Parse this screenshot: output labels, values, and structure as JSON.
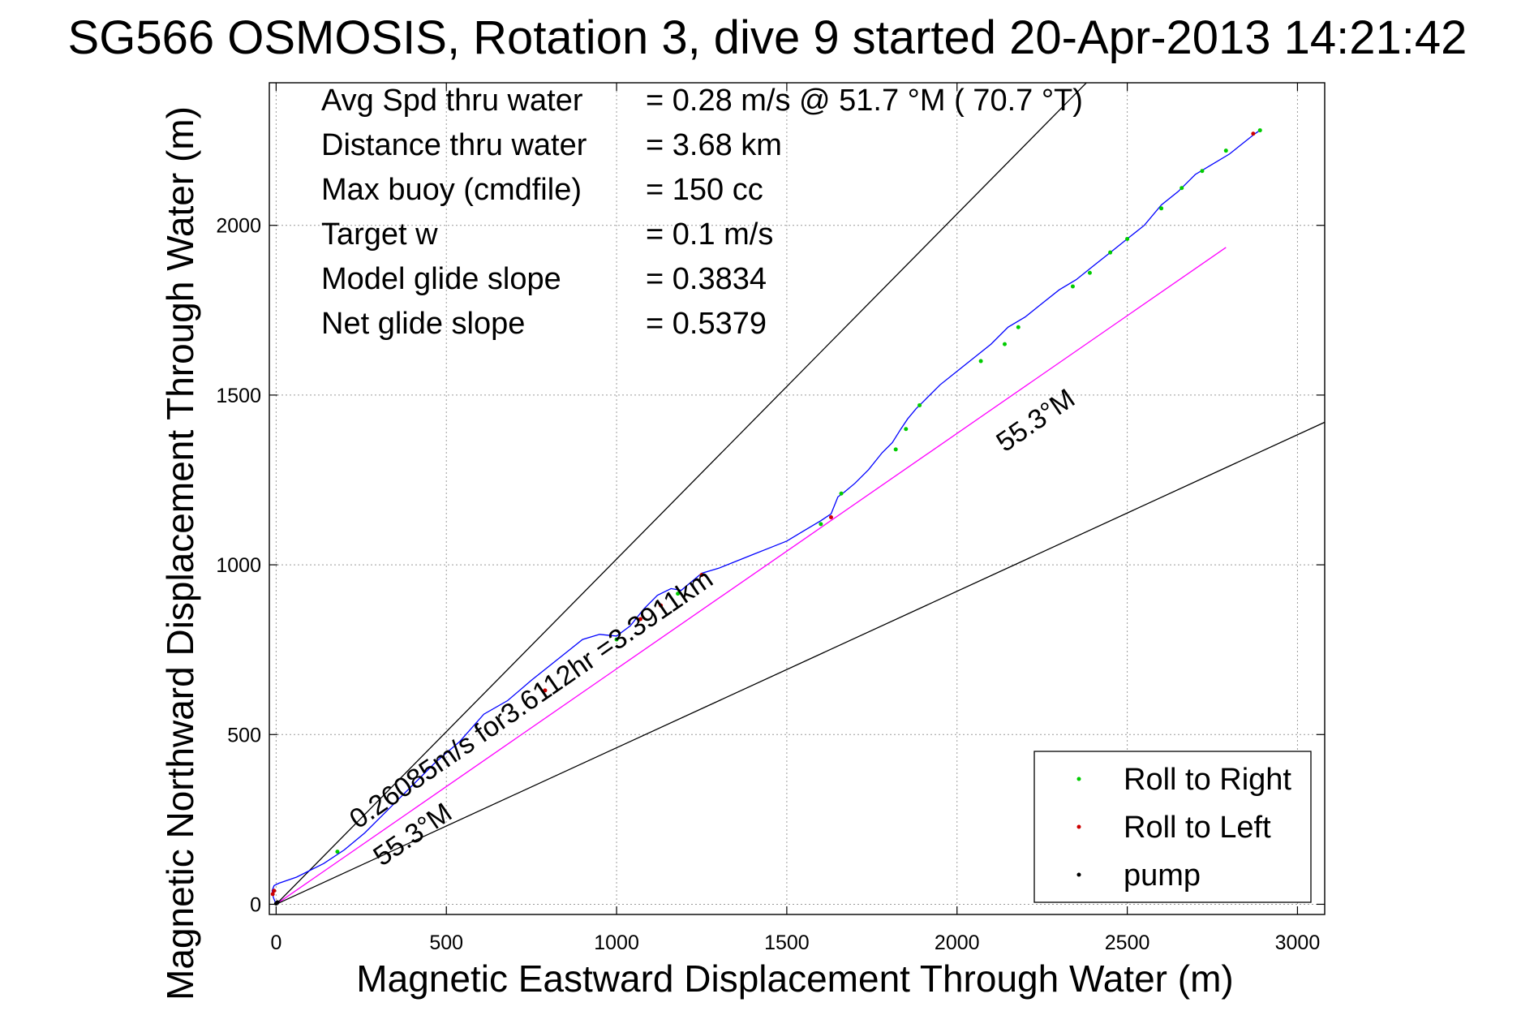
{
  "chart_data": {
    "type": "line",
    "title": "SG566 OSMOSIS, Rotation 3, dive 9 started 20-Apr-2013 14:21:42",
    "xlabel": "Magnetic Eastward Displacement Through Water (m)",
    "ylabel": "Magnetic Northward Displacement Through Water (m)",
    "xlim": [
      -20,
      3080
    ],
    "ylim": [
      -30,
      2420
    ],
    "xticks": [
      0,
      500,
      1000,
      1500,
      2000,
      2500,
      3000
    ],
    "yticks": [
      0,
      500,
      1000,
      1500,
      2000
    ],
    "grid": true,
    "info_rows": [
      {
        "label": "Avg Spd thru water",
        "value": "=  0.28 m/s @  51.7 °M ( 70.7 °T)"
      },
      {
        "label": "Distance thru water",
        "value": "=  3.68 km"
      },
      {
        "label": "Max buoy (cmdfile)",
        "value": "= 150 cc"
      },
      {
        "label": "Target w",
        "value": "= 0.1 m/s"
      },
      {
        "label": "Model glide slope",
        "value": "= 0.3834"
      },
      {
        "label": "Net glide slope",
        "value": "= 0.5379"
      }
    ],
    "track": {
      "color": "#0000ff",
      "x": [
        0,
        -8,
        -12,
        -6,
        8,
        60,
        140,
        200,
        260,
        330,
        400,
        470,
        540,
        610,
        680,
        750,
        800,
        850,
        900,
        950,
        1000,
        1040,
        1080,
        1120,
        1160,
        1190,
        1220,
        1250,
        1300,
        1350,
        1400,
        1450,
        1500,
        1550,
        1600,
        1630,
        1650,
        1670,
        1700,
        1740,
        1780,
        1810,
        1835,
        1855,
        1880,
        1900,
        1950,
        2000,
        2050,
        2100,
        2150,
        2200,
        2250,
        2300,
        2350,
        2400,
        2450,
        2500,
        2550,
        2600,
        2650,
        2700,
        2750,
        2800,
        2850,
        2875,
        2890
      ],
      "y": [
        0,
        20,
        40,
        55,
        62,
        80,
        120,
        160,
        210,
        280,
        350,
        420,
        480,
        560,
        600,
        660,
        700,
        740,
        780,
        795,
        790,
        820,
        870,
        910,
        930,
        925,
        950,
        975,
        990,
        1010,
        1030,
        1050,
        1070,
        1100,
        1130,
        1150,
        1200,
        1215,
        1240,
        1280,
        1330,
        1360,
        1400,
        1430,
        1460,
        1480,
        1530,
        1570,
        1610,
        1650,
        1700,
        1730,
        1770,
        1810,
        1840,
        1880,
        1920,
        1960,
        2000,
        2060,
        2100,
        2150,
        2180,
        2210,
        2250,
        2270,
        2280
      ]
    },
    "lines": [
      {
        "name": "55.3°M heading line",
        "color": "#ff00ff",
        "x": [
          0,
          2790
        ],
        "y": [
          0,
          1935
        ]
      },
      {
        "name": "upper envelope",
        "color": "#000000",
        "x": [
          0,
          2380
        ],
        "y": [
          0,
          2420
        ]
      },
      {
        "name": "lower envelope",
        "color": "#000000",
        "x": [
          0,
          3080
        ],
        "y": [
          0,
          1420
        ]
      }
    ],
    "markers": {
      "roll_right": {
        "color": "#00cc00",
        "points": [
          [
            180,
            155
          ],
          [
            1000,
            780
          ],
          [
            1180,
            915
          ],
          [
            1600,
            1120
          ],
          [
            1660,
            1210
          ],
          [
            1820,
            1340
          ],
          [
            1850,
            1400
          ],
          [
            1890,
            1470
          ],
          [
            2070,
            1600
          ],
          [
            2140,
            1650
          ],
          [
            2180,
            1700
          ],
          [
            2340,
            1820
          ],
          [
            2390,
            1860
          ],
          [
            2450,
            1920
          ],
          [
            2500,
            1960
          ],
          [
            2600,
            2050
          ],
          [
            2660,
            2110
          ],
          [
            2720,
            2160
          ],
          [
            2790,
            2220
          ],
          [
            2890,
            2280
          ]
        ]
      },
      "roll_left": {
        "color": "#cc0000",
        "points": [
          [
            -6,
            40
          ],
          [
            -10,
            30
          ],
          [
            790,
            630
          ],
          [
            1070,
            840
          ],
          [
            1130,
            880
          ],
          [
            1250,
            970
          ],
          [
            1630,
            1140
          ],
          [
            2870,
            2270
          ]
        ]
      },
      "pump": {
        "color": "#000000",
        "points": [
          [
            0,
            2
          ],
          [
            4,
            6
          ]
        ]
      }
    },
    "annotations": [
      {
        "text": "0.26085m/s for3.6112hr =3.3911km",
        "x": 240,
        "y": 220,
        "angle": 34.6
      },
      {
        "text": "55.3°M",
        "x": 310,
        "y": 110,
        "angle": 34.6
      },
      {
        "text": "55.3°M",
        "x": 2140,
        "y": 1330,
        "angle": 34.6
      }
    ],
    "legend": {
      "position": "bottom-right",
      "entries": [
        {
          "label": "Roll to Right",
          "color": "#00cc00"
        },
        {
          "label": "Roll to Left",
          "color": "#cc0000"
        },
        {
          "label": "pump",
          "color": "#000000"
        }
      ]
    }
  }
}
